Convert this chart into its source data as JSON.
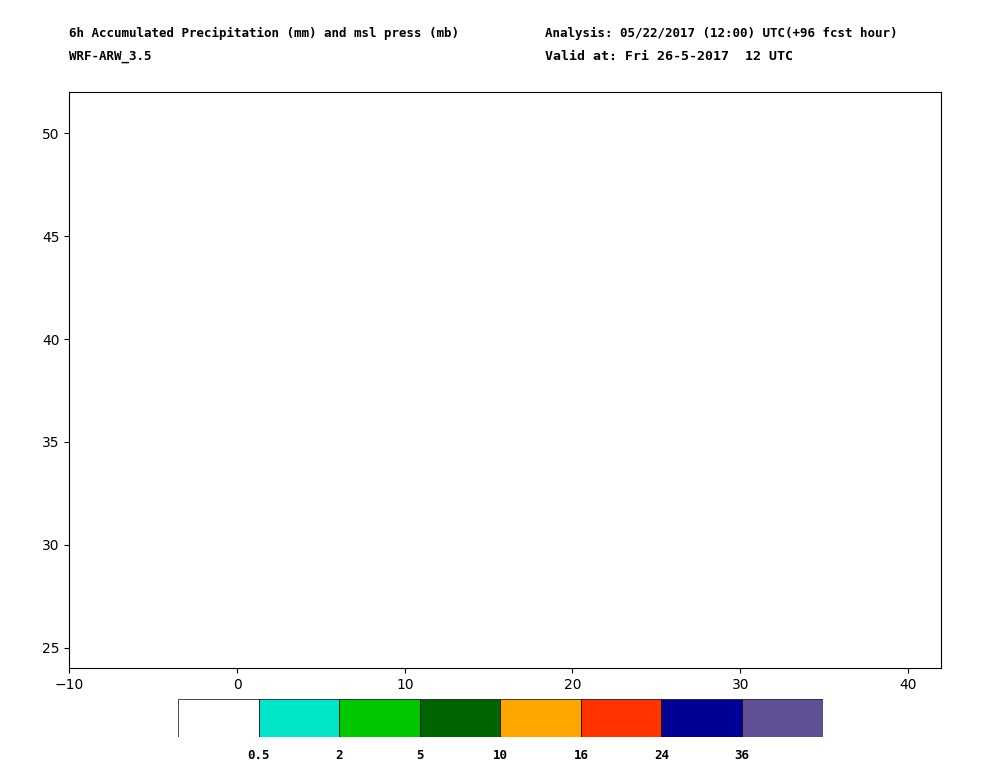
{
  "title_left": "6h Accumulated Precipitation (mm) and msl press (mb)",
  "title_right": "Analysis: 05/22/2017 (12:00) UTC(+96 fcst hour)",
  "subtitle_left": "WRF-ARW_3.5",
  "subtitle_right": "Valid at: Fri 26-5-2017  12 UTC",
  "lon_min": -10.0,
  "lon_max": 42.0,
  "lat_min": 24.0,
  "lat_max": 52.0,
  "lon_ticks": [
    -10,
    0,
    10,
    20,
    30,
    40
  ],
  "lat_ticks": [
    25,
    30,
    35,
    40,
    45,
    50
  ],
  "precip_levels": [
    0.5,
    2,
    5,
    10,
    16,
    24,
    36,
    100
  ],
  "precip_colors": [
    "#ffffff",
    "#00e5c8",
    "#00c800",
    "#006400",
    "#ffa500",
    "#ff3200",
    "#000096",
    "#5f5096"
  ],
  "colorbar_labels": [
    "0.5",
    "2",
    "5",
    "10",
    "16",
    "24",
    "36"
  ],
  "msl_color": "#0000cd",
  "msl_linewidth": 1.0,
  "coast_color": "#000000",
  "coast_linewidth": 0.8,
  "grid_color": "#000000",
  "background_color": "#ffffff",
  "figsize": [
    9.91,
    7.68
  ],
  "dpi": 100
}
